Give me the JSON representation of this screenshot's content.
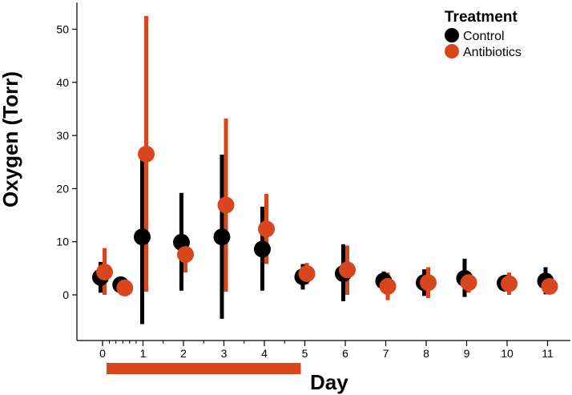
{
  "chart_data": {
    "type": "scatter",
    "title": "",
    "xlabel": "Day",
    "ylabel": "Oxygen (Torr)",
    "xlim": [
      -0.6,
      11.6
    ],
    "ylim": [
      -10,
      56
    ],
    "x_ticks": [
      0,
      1,
      2,
      3,
      4,
      5,
      6,
      7,
      8,
      9,
      10,
      11
    ],
    "x_minor_ticks": [
      0.17,
      0.33,
      0.5,
      0.67,
      0.83,
      1.5,
      2.5,
      3.5,
      4.5
    ],
    "y_ticks": [
      0,
      10,
      20,
      30,
      40,
      50
    ],
    "grid": false,
    "legend": {
      "title": "Treatment",
      "position": "top-right",
      "entries": [
        "Control",
        "Antibiotics"
      ]
    },
    "colors": {
      "Control": "#000000",
      "Antibiotics": "#d9461e"
    },
    "treatment_period": {
      "start": 0.1,
      "end": 4.9,
      "color": "#d9461e"
    },
    "series": [
      {
        "name": "Control",
        "color": "#000000",
        "points": [
          {
            "x": -0.05,
            "y": 3.3,
            "low": 0.4,
            "high": 6.2
          },
          {
            "x": 0.45,
            "y": 1.9,
            "low": 1.4,
            "high": 2.4
          },
          {
            "x": 0.98,
            "y": 10.9,
            "low": -5.5,
            "high": 27.0
          },
          {
            "x": 1.95,
            "y": 9.9,
            "low": 0.8,
            "high": 19.2
          },
          {
            "x": 2.95,
            "y": 10.9,
            "low": -4.5,
            "high": 26.4
          },
          {
            "x": 3.95,
            "y": 8.6,
            "low": 0.8,
            "high": 16.6
          },
          {
            "x": 4.95,
            "y": 3.4,
            "low": 1.0,
            "high": 5.8
          },
          {
            "x": 5.95,
            "y": 4.0,
            "low": -1.2,
            "high": 9.5
          },
          {
            "x": 6.95,
            "y": 2.6,
            "low": 0.8,
            "high": 4.4
          },
          {
            "x": 7.95,
            "y": 2.3,
            "low": -0.2,
            "high": 4.8
          },
          {
            "x": 8.95,
            "y": 3.1,
            "low": -0.4,
            "high": 6.8
          },
          {
            "x": 9.95,
            "y": 2.2,
            "low": 1.2,
            "high": 3.2
          },
          {
            "x": 10.95,
            "y": 2.6,
            "low": 0.1,
            "high": 5.2
          }
        ]
      },
      {
        "name": "Antibiotics",
        "color": "#d9461e",
        "points": [
          {
            "x": 0.05,
            "y": 4.3,
            "low": 0.0,
            "high": 8.8
          },
          {
            "x": 0.55,
            "y": 1.3,
            "low": 1.0,
            "high": 1.7
          },
          {
            "x": 1.08,
            "y": 26.5,
            "low": 0.6,
            "high": 52.5
          },
          {
            "x": 2.05,
            "y": 7.6,
            "low": 4.2,
            "high": 11.0
          },
          {
            "x": 3.05,
            "y": 16.9,
            "low": 0.6,
            "high": 33.2
          },
          {
            "x": 4.05,
            "y": 12.4,
            "low": 5.8,
            "high": 19.0
          },
          {
            "x": 5.05,
            "y": 4.0,
            "low": 2.0,
            "high": 6.0
          },
          {
            "x": 6.05,
            "y": 4.7,
            "low": 0.0,
            "high": 9.3
          },
          {
            "x": 7.05,
            "y": 1.6,
            "low": -1.0,
            "high": 4.2
          },
          {
            "x": 8.05,
            "y": 2.3,
            "low": -0.6,
            "high": 5.2
          },
          {
            "x": 9.05,
            "y": 2.3,
            "low": 0.4,
            "high": 4.2
          },
          {
            "x": 10.05,
            "y": 2.1,
            "low": 0.0,
            "high": 4.2
          },
          {
            "x": 11.05,
            "y": 1.6,
            "low": 0.8,
            "high": 2.4
          }
        ]
      }
    ]
  }
}
